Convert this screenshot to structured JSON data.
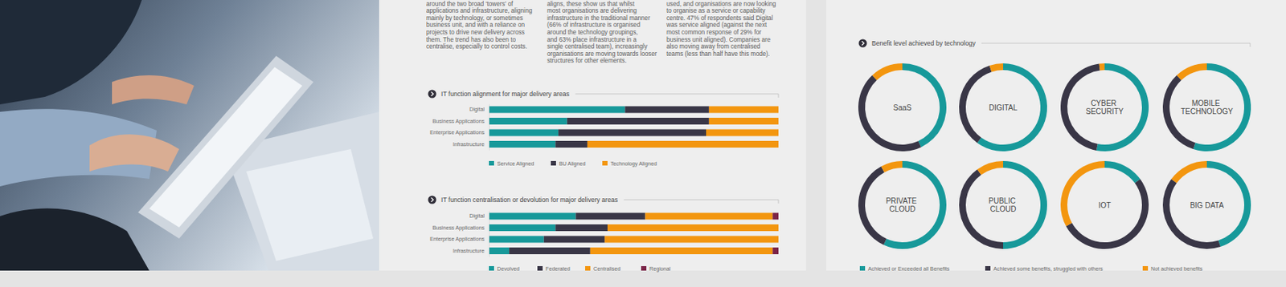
{
  "chart_data": [
    {
      "type": "bar",
      "orientation": "horizontal",
      "stacked": true,
      "title": "IT function alignment for major delivery areas",
      "categories": [
        "Digital",
        "Business Applications",
        "Enterprise Applications",
        "Infrastructure"
      ],
      "series": [
        {
          "name": "Service Aligned",
          "color": "#17999a",
          "values": [
            47,
            27,
            24,
            23
          ]
        },
        {
          "name": "BU Aligned",
          "color": "#393646",
          "values": [
            29,
            49,
            51,
            11
          ]
        },
        {
          "name": "Technology Aligned",
          "color": "#f3960f",
          "values": [
            24,
            24,
            25,
            66
          ]
        }
      ],
      "xlim": [
        0,
        100
      ],
      "tick_labels": "y",
      "legend": "bottom"
    },
    {
      "type": "bar",
      "orientation": "horizontal",
      "stacked": true,
      "title": "IT function centralisation or devolution for major delivery areas",
      "categories": [
        "Digital",
        "Business Applications",
        "Enterprise Applications",
        "Infrastructure"
      ],
      "series": [
        {
          "name": "Devolved",
          "color": "#17999a",
          "values": [
            30,
            23,
            19,
            7
          ]
        },
        {
          "name": "Federated",
          "color": "#393646",
          "values": [
            24,
            18,
            21,
            28
          ]
        },
        {
          "name": "Centralised",
          "color": "#f3960f",
          "values": [
            44,
            59,
            60,
            63
          ]
        },
        {
          "name": "Regional",
          "color": "#7b2447",
          "values": [
            2,
            0,
            0,
            2
          ]
        }
      ],
      "xlim": [
        0,
        100
      ],
      "tick_labels": "y",
      "legend": "bottom"
    },
    {
      "type": "donut",
      "title": "Benefit level achieved by technology",
      "categories": [
        "SaaS",
        "DIGITAL",
        "CYBER SECURITY",
        "MOBILE TECHNOLOGY",
        "PRIVATE CLOUD",
        "PUBLIC CLOUD",
        "IOT",
        "BIG DATA"
      ],
      "series": [
        {
          "name": "Achieved or Exceeded all Benefits",
          "color": "#17999a",
          "values": [
            43,
            60,
            53,
            55,
            57,
            50,
            15,
            45
          ]
        },
        {
          "name": "Achieved some benefits, struggled with others",
          "color": "#393646",
          "values": [
            45,
            35,
            45,
            33,
            35,
            40,
            52,
            40
          ]
        },
        {
          "name": "Not achieved benefits",
          "color": "#f3960f",
          "values": [
            12,
            5,
            2,
            12,
            8,
            10,
            33,
            15
          ]
        }
      ],
      "legend": "bottom"
    }
  ],
  "text_columns": [
    [
      "around the two broad ‘towers’ of",
      "applications and infrastructure, aligning",
      "mainly by technology, or sometimes",
      "business unit, and with a reliance on",
      "projects to drive new delivery across",
      "them. The trend has also been to",
      "centralise, especially to control costs."
    ],
    [
      "aligns, these show us that whilst",
      "most organisations are delivering",
      "infrastructure in the traditional manner",
      "(66% of infrastructure is organised",
      "around the technology groupings,",
      "and 63% place infrastructure in a",
      "single centralised team), increasingly",
      "organisations are moving towards looser",
      "structures for other elements."
    ],
    [
      "used, and organisations are now looking",
      "to organise as a service or capability",
      "centre. 47% of respondents said Digital",
      "was service aligned (against the next",
      "most common response of 29% for",
      "business unit aligned). Companies are",
      "also moving away from centralised",
      "teams (less than half have this mode)."
    ]
  ]
}
